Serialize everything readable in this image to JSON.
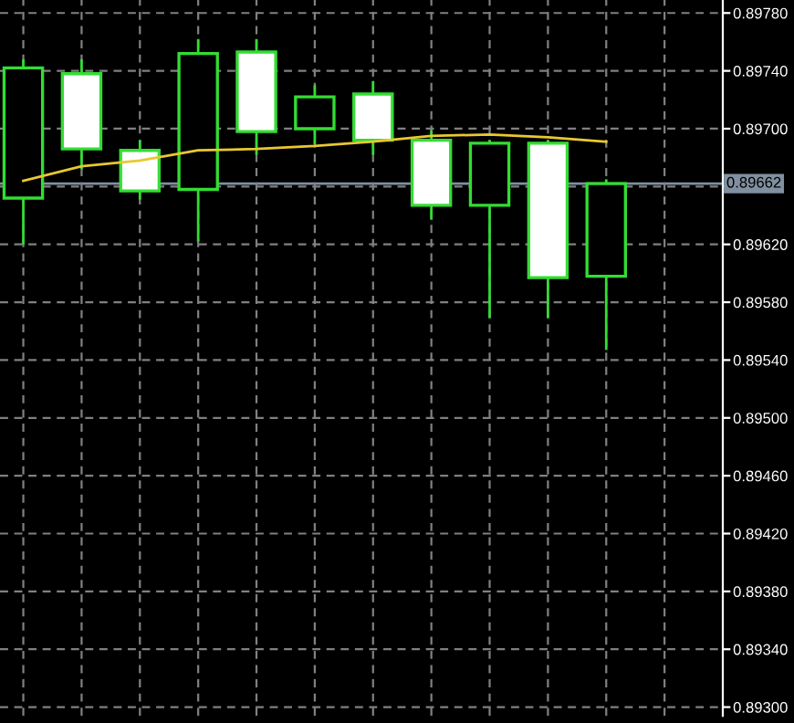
{
  "chart_data": {
    "type": "candlestick",
    "categories": [
      null,
      null,
      null,
      null,
      null,
      null,
      null,
      null,
      null,
      null,
      null
    ],
    "color": "#33dd33",
    "ohlc": [
      [
        0.89652,
        0.89748,
        0.8962,
        0.89742
      ],
      [
        0.89738,
        0.89748,
        0.89672,
        0.89686
      ],
      [
        0.89685,
        0.89692,
        0.89651,
        0.89657
      ],
      [
        0.89658,
        0.89762,
        0.89622,
        0.89752
      ],
      [
        0.89753,
        0.89762,
        0.89682,
        0.89698
      ],
      [
        0.897,
        0.8973,
        0.89689,
        0.89722
      ],
      [
        0.89724,
        0.89733,
        0.89682,
        0.89692
      ],
      [
        0.89692,
        0.89699,
        0.89637,
        0.89647
      ],
      [
        0.89647,
        0.89692,
        0.89569,
        0.8969
      ],
      [
        0.8969,
        0.89692,
        0.89569,
        0.89597
      ],
      [
        0.89598,
        0.89665,
        0.89547,
        0.89662
      ]
    ],
    "series": [
      {
        "type": "line",
        "color": "#e8c830",
        "values": [
          0.89664,
          0.89674,
          0.89678,
          0.89685,
          0.89686,
          0.89688,
          0.89691,
          0.89695,
          0.89696,
          0.89694,
          0.89691
        ]
      }
    ],
    "ylim": [
      0.89294,
      0.89789
    ],
    "yticks": [
      {
        "value": 0.893,
        "label": "0.89300"
      },
      {
        "value": 0.8934,
        "label": "0.89340"
      },
      {
        "value": 0.8938,
        "label": "0.89380"
      },
      {
        "value": 0.8942,
        "label": "0.89420"
      },
      {
        "value": 0.8946,
        "label": "0.89460"
      },
      {
        "value": 0.895,
        "label": "0.89500"
      },
      {
        "value": 0.8954,
        "label": "0.89540"
      },
      {
        "value": 0.8958,
        "label": "0.89580"
      },
      {
        "value": 0.8962,
        "label": "0.89620"
      },
      {
        "value": 0.8966,
        "label": null
      },
      {
        "value": 0.897,
        "label": "0.89700"
      },
      {
        "value": 0.8974,
        "label": "0.89740"
      },
      {
        "value": 0.8978,
        "label": "0.89780"
      }
    ],
    "ref_lines": [
      {
        "axis": "y",
        "value": 0.89662,
        "label": "0.89662",
        "color": "#8090a0"
      }
    ],
    "grid": true,
    "tick_labels": "y"
  }
}
